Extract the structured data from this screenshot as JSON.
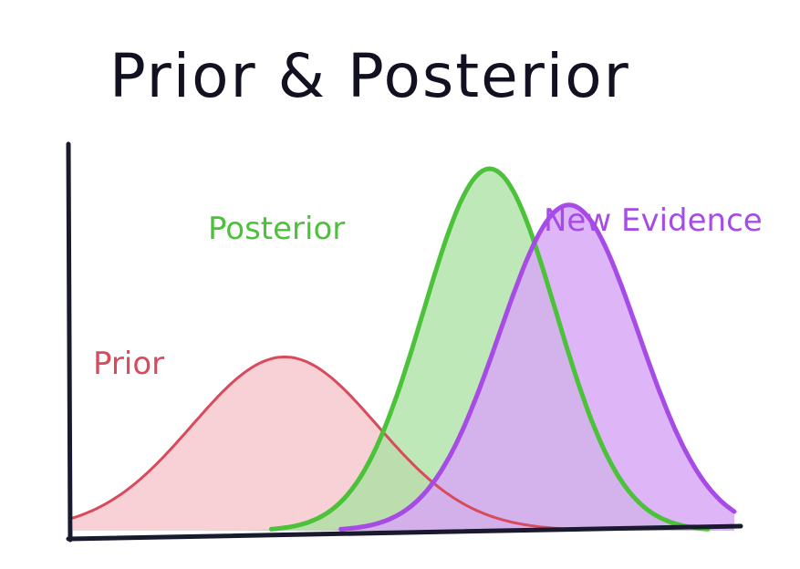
{
  "title": "Prior & Posterior",
  "colors": {
    "prior": "#d84a5c",
    "posterior": "#4cc23a",
    "evidence": "#a64be6",
    "axis": "#1a1a2e"
  },
  "chart_data": {
    "type": "area",
    "title": "Prior & Posterior",
    "xlabel": "",
    "ylabel": "",
    "grid": false,
    "series": [
      {
        "name": "Prior",
        "mean": 3.2,
        "sd": 1.4,
        "peak": 0.48
      },
      {
        "name": "Posterior",
        "mean": 6.3,
        "sd": 1.0,
        "peak": 1.0
      },
      {
        "name": "New Evidence",
        "mean": 7.5,
        "sd": 1.05,
        "peak": 0.9
      }
    ]
  }
}
